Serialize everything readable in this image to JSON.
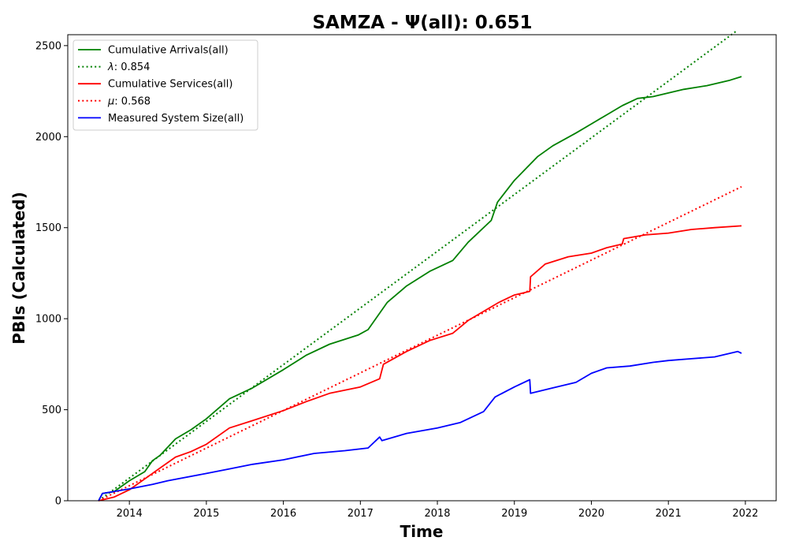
{
  "chart_data": {
    "type": "line",
    "title": "SAMZA -  Ψ(all): 0.651",
    "xlabel": "Time",
    "ylabel": "PBIs (Calculated)",
    "xlim": [
      2013.2,
      2022.4
    ],
    "ylim": [
      0,
      2560
    ],
    "x_ticks": [
      2014,
      2015,
      2016,
      2017,
      2018,
      2019,
      2020,
      2021,
      2022
    ],
    "y_ticks": [
      0,
      500,
      1000,
      1500,
      2000,
      2500
    ],
    "grid": false,
    "legend_position": "top-left",
    "series": [
      {
        "name": "Cumulative Arrivals(all)",
        "label": "Cumulative Arrivals(all)",
        "color": "#008000",
        "style": "solid",
        "x": [
          2013.6,
          2013.65,
          2013.8,
          2014.0,
          2014.2,
          2014.3,
          2014.4,
          2014.6,
          2014.8,
          2015.0,
          2015.3,
          2015.6,
          2016.0,
          2016.3,
          2016.6,
          2016.97,
          2017.1,
          2017.35,
          2017.6,
          2017.9,
          2018.2,
          2018.4,
          2018.7,
          2018.78,
          2019.0,
          2019.3,
          2019.5,
          2019.8,
          2020.0,
          2020.2,
          2020.4,
          2020.6,
          2020.8,
          2021.0,
          2021.2,
          2021.5,
          2021.8,
          2021.95
        ],
        "values": [
          0,
          40,
          50,
          110,
          160,
          220,
          250,
          340,
          390,
          450,
          560,
          620,
          720,
          800,
          860,
          910,
          940,
          1090,
          1180,
          1260,
          1320,
          1420,
          1540,
          1640,
          1760,
          1890,
          1950,
          2020,
          2070,
          2120,
          2170,
          2210,
          2220,
          2240,
          2260,
          2280,
          2310,
          2330
        ]
      },
      {
        "name": "λ: 0.854",
        "label_prefix": "λ",
        "label_suffix": ": 0.854",
        "color": "#008000",
        "style": "dotted",
        "x": [
          2013.6,
          2021.9
        ],
        "values": [
          0,
          2585
        ]
      },
      {
        "name": "Cumulative Services(all)",
        "label": "Cumulative Services(all)",
        "color": "#ff0000",
        "style": "solid",
        "x": [
          2013.6,
          2013.8,
          2014.0,
          2014.2,
          2014.4,
          2014.6,
          2014.8,
          2015.0,
          2015.3,
          2015.6,
          2016.0,
          2016.3,
          2016.6,
          2017.0,
          2017.25,
          2017.3,
          2017.6,
          2017.9,
          2018.2,
          2018.4,
          2018.8,
          2019.0,
          2019.2,
          2019.21,
          2019.4,
          2019.7,
          2020.0,
          2020.2,
          2020.4,
          2020.42,
          2020.7,
          2021.0,
          2021.3,
          2021.6,
          2021.95
        ],
        "values": [
          0,
          20,
          60,
          120,
          180,
          240,
          270,
          310,
          400,
          440,
          495,
          545,
          590,
          625,
          670,
          750,
          820,
          880,
          920,
          990,
          1090,
          1130,
          1150,
          1230,
          1300,
          1340,
          1360,
          1390,
          1410,
          1440,
          1460,
          1470,
          1490,
          1500,
          1510
        ]
      },
      {
        "name": "μ: 0.568",
        "label_prefix": "μ",
        "label_suffix": ": 0.568",
        "color": "#ff0000",
        "style": "dotted",
        "x": [
          2013.6,
          2021.95
        ],
        "values": [
          0,
          1725
        ]
      },
      {
        "name": "Measured System Size(all)",
        "label": "Measured System Size(all)",
        "color": "#0000ff",
        "style": "solid",
        "x": [
          2013.6,
          2013.65,
          2014.0,
          2014.3,
          2014.5,
          2015.0,
          2015.3,
          2015.6,
          2016.0,
          2016.4,
          2016.8,
          2017.1,
          2017.25,
          2017.28,
          2017.6,
          2018.0,
          2018.3,
          2018.6,
          2018.75,
          2019.0,
          2019.2,
          2019.21,
          2019.5,
          2019.8,
          2020.0,
          2020.2,
          2020.5,
          2020.8,
          2021.0,
          2021.3,
          2021.6,
          2021.9,
          2021.95
        ],
        "values": [
          0,
          40,
          65,
          90,
          110,
          150,
          175,
          200,
          225,
          260,
          275,
          290,
          350,
          330,
          370,
          400,
          430,
          490,
          570,
          625,
          665,
          590,
          620,
          650,
          700,
          730,
          740,
          760,
          770,
          780,
          790,
          820,
          810
        ]
      }
    ]
  }
}
